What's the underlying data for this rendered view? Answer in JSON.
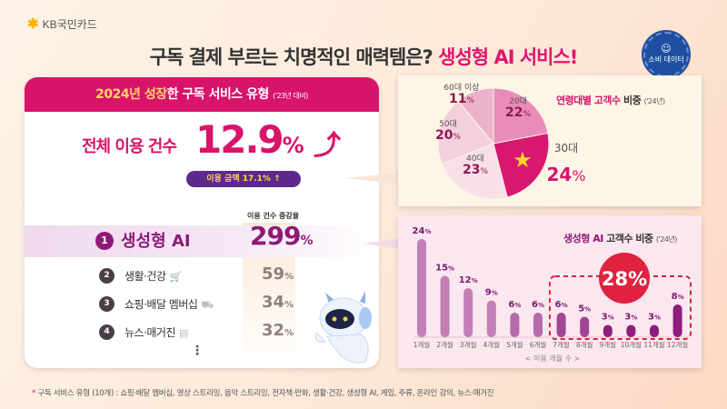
{
  "brand": {
    "logo_text": "KB국민카드"
  },
  "header": {
    "title_main": "구독 결제 부르는 치명적인 매력템은? ",
    "title_highlight": "생성형 AI 서비스!",
    "badge": "소비 데이터"
  },
  "left_card": {
    "header_year": "2024년 ",
    "header_growth": "성장",
    "header_rest": "한 구독 서비스 유형 ",
    "header_sub": "('23년 대비)",
    "total_label": "전체 이용 건수",
    "total_value": "12.9",
    "total_unit": "%",
    "amount_pill": "이용 금액 17.1% ↑",
    "column_header": "이용 건수 증감율",
    "rows": [
      {
        "rank": "1",
        "name": "생성형 AI",
        "value": "299",
        "unit": "%",
        "icon": ""
      },
      {
        "rank": "2",
        "name": "생활·건강",
        "value": "59",
        "unit": "%",
        "icon": "cart-icon"
      },
      {
        "rank": "3",
        "name": "쇼핑·배달 멤버십",
        "value": "34",
        "unit": "%",
        "icon": "delivery-icon"
      },
      {
        "rank": "4",
        "name": "뉴스·매거진",
        "value": "32",
        "unit": "%",
        "icon": "newspaper-icon"
      }
    ],
    "more": "⋮"
  },
  "colors": {
    "pink": "#d8136a",
    "purple": "#8e1a78",
    "navy": "#1f4fa0",
    "red": "#e0213f"
  },
  "chart_data": [
    {
      "type": "pie",
      "title_a": "연령대별 고객수",
      "title_b": " 비중",
      "title_sub": "('24년)",
      "labels": [
        "20대",
        "30대",
        "40대",
        "50대",
        "60대 이상"
      ],
      "values": [
        22,
        24,
        23,
        20,
        11
      ],
      "unit": "%",
      "colors": [
        "#e98cba",
        "#d8186f",
        "#f9dfe7",
        "#f4d0dd",
        "#ebb2ca"
      ],
      "highlight": "30대"
    },
    {
      "type": "bar",
      "title_a": "생성형 AI",
      "title_b": " 고객수 비중",
      "title_sub": "('24년)",
      "categories": [
        "1개월",
        "2개월",
        "3개월",
        "4개월",
        "5개월",
        "6개월",
        "7개월",
        "8개월",
        "9개월",
        "10개월",
        "11개월",
        "12개월"
      ],
      "values": [
        24,
        15,
        12,
        9,
        6,
        6,
        6,
        5,
        3,
        3,
        3,
        8
      ],
      "unit": "%",
      "xlabel": "< 이용 개월 수 >",
      "highlight_range": [
        "7개월",
        "12개월"
      ],
      "highlight_total": "28%"
    }
  ],
  "footnote": {
    "marker": "*",
    "text": " 구독 서비스 유형 (10개) : 쇼핑·배달 멤버십, 영상 스트리밍, 음악 스트리밍, 전자책·만화, 생활·건강, 생성형 AI, 게임, 주류, 온라인 강의, 뉴스·매거진"
  }
}
